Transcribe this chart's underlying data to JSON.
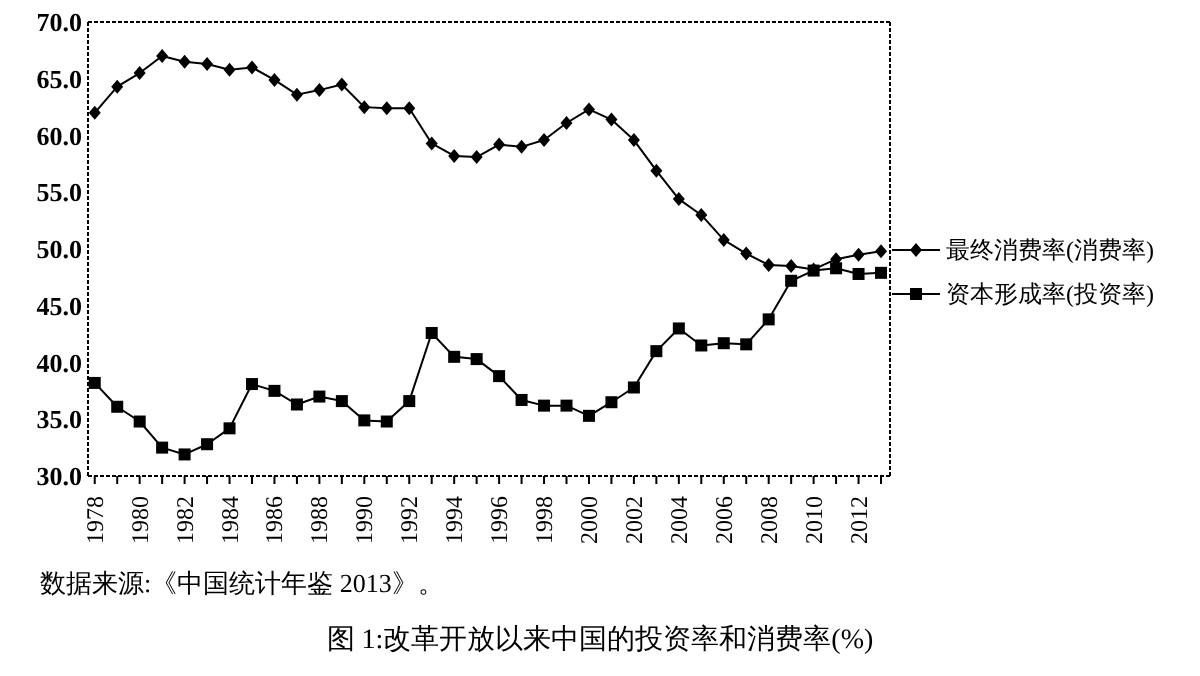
{
  "chart_data": {
    "type": "line",
    "title": "图 1:改革开放以来中国的投资率和消费率(%)",
    "annotations": [
      "数据来源:《中国统计年鉴 2013》。"
    ],
    "x": [
      1978,
      1979,
      1980,
      1981,
      1982,
      1983,
      1984,
      1985,
      1986,
      1987,
      1988,
      1989,
      1990,
      1991,
      1992,
      1993,
      1994,
      1995,
      1996,
      1997,
      1998,
      1999,
      2000,
      2001,
      2002,
      2003,
      2004,
      2005,
      2006,
      2007,
      2008,
      2009,
      2010,
      2011,
      2012,
      2013
    ],
    "series": [
      {
        "name": "最终消费率(消费率)",
        "color": "#000000",
        "marker": "diamond",
        "values": [
          62.0,
          64.3,
          65.5,
          67.0,
          66.5,
          66.3,
          65.8,
          66.0,
          64.9,
          63.6,
          64.0,
          64.5,
          62.5,
          62.4,
          62.4,
          59.3,
          58.2,
          58.1,
          59.2,
          59.0,
          59.6,
          61.1,
          62.3,
          61.4,
          59.6,
          56.9,
          54.4,
          53.0,
          50.8,
          49.6,
          48.6,
          48.5,
          48.2,
          49.1,
          49.5,
          49.8
        ]
      },
      {
        "name": "资本形成率(投资率)",
        "color": "#000000",
        "marker": "square",
        "values": [
          38.2,
          36.1,
          34.8,
          32.5,
          31.9,
          32.8,
          34.2,
          38.1,
          37.5,
          36.3,
          37.0,
          36.6,
          34.9,
          34.8,
          36.6,
          42.6,
          40.5,
          40.3,
          38.8,
          36.7,
          36.2,
          36.2,
          35.3,
          36.5,
          37.8,
          41.0,
          43.0,
          41.5,
          41.7,
          41.6,
          43.8,
          47.2,
          48.1,
          48.3,
          47.8,
          47.9
        ]
      }
    ],
    "xlim": [
      1977.7,
      2013.4
    ],
    "xticks": [
      1978,
      {
        "value": 1979,
        "label": null
      },
      1980,
      {
        "value": 1981,
        "label": null
      },
      1982,
      {
        "value": 1983,
        "label": null
      },
      1984,
      {
        "value": 1985,
        "label": null
      },
      1986,
      {
        "value": 1987,
        "label": null
      },
      1988,
      {
        "value": 1989,
        "label": null
      },
      1990,
      {
        "value": 1991,
        "label": null
      },
      1992,
      {
        "value": 1993,
        "label": null
      },
      1994,
      {
        "value": 1995,
        "label": null
      },
      1996,
      {
        "value": 1997,
        "label": null
      },
      1998,
      {
        "value": 1999,
        "label": null
      },
      2000,
      {
        "value": 2001,
        "label": null
      },
      2002,
      {
        "value": 2003,
        "label": null
      },
      2004,
      {
        "value": 2005,
        "label": null
      },
      2006,
      {
        "value": 2007,
        "label": null
      },
      2008,
      {
        "value": 2009,
        "label": null
      },
      2010,
      {
        "value": 2011,
        "label": null
      },
      2012,
      {
        "value": 2013,
        "label": null
      }
    ],
    "ylim": [
      30,
      70
    ],
    "yticks": [
      {
        "value": 30,
        "label": "30.0"
      },
      {
        "value": 35,
        "label": "35.0"
      },
      {
        "value": 40,
        "label": "40.0"
      },
      {
        "value": 45,
        "label": "45.0"
      },
      {
        "value": 50,
        "label": "50.0"
      },
      {
        "value": 55,
        "label": "55.0"
      },
      {
        "value": 60,
        "label": "60.0"
      },
      {
        "value": 65,
        "label": "65.0"
      },
      {
        "value": 70,
        "label": "70.0"
      }
    ],
    "grid": false,
    "legend": "right",
    "line_style": "solid"
  }
}
